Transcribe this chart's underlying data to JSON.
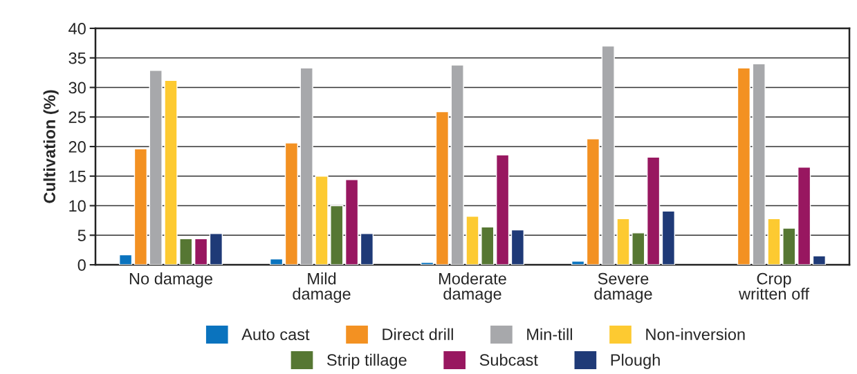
{
  "chart_data": {
    "type": "bar",
    "ylabel": "Cultivation (%)",
    "categories": [
      "No damage",
      "Mild\ndamage",
      "Moderate\ndamage",
      "Severe\ndamage",
      "Crop\nwritten off"
    ],
    "series": [
      {
        "name": "Auto cast",
        "color": "#0a73be",
        "values": [
          1.7,
          1.0,
          0.4,
          0.6,
          null
        ]
      },
      {
        "name": "Direct drill",
        "color": "#f39122",
        "values": [
          19.6,
          20.6,
          25.9,
          21.3,
          33.3
        ]
      },
      {
        "name": "Min-till",
        "color": "#a7a8ab",
        "values": [
          32.9,
          33.3,
          33.8,
          37.0,
          34.0
        ]
      },
      {
        "name": "Non-inversion",
        "color": "#fdca31",
        "values": [
          31.2,
          15.0,
          8.2,
          7.8,
          7.8
        ]
      },
      {
        "name": "Strip tillage",
        "color": "#567733",
        "values": [
          4.4,
          10.0,
          6.4,
          5.4,
          6.2
        ]
      },
      {
        "name": "Subcast",
        "color": "#981760",
        "values": [
          4.4,
          14.4,
          18.6,
          18.2,
          16.5
        ]
      },
      {
        "name": "Plough",
        "color": "#1f3a77",
        "values": [
          5.3,
          5.3,
          5.9,
          9.1,
          1.5
        ]
      }
    ],
    "ylim": [
      0,
      40
    ],
    "yticks": [
      0,
      5,
      10,
      15,
      20,
      25,
      30,
      35,
      40
    ],
    "grid": "y",
    "legend": "bottom"
  }
}
